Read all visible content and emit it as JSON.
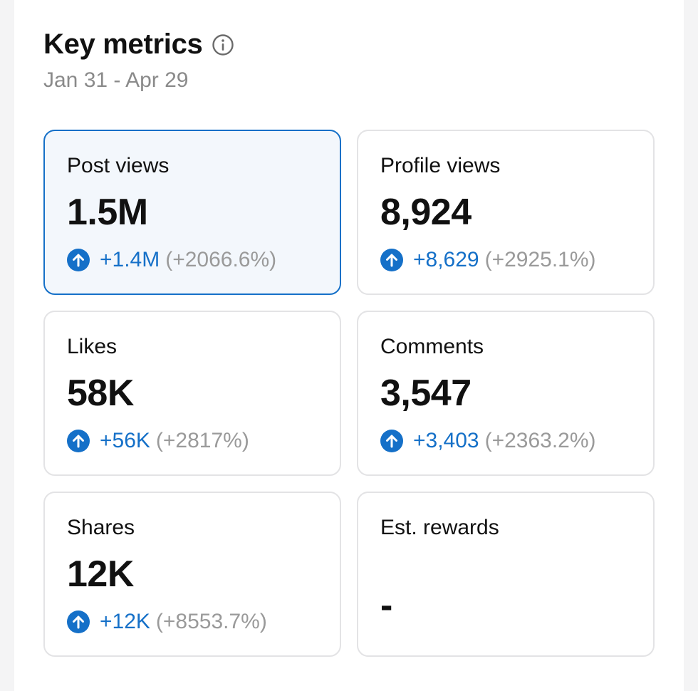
{
  "header": {
    "title": "Key metrics",
    "info_icon": "info-circle-icon",
    "date_range": "Jan 31 - Apr 29"
  },
  "colors": {
    "accent": "#1570c8",
    "muted": "#9a9a9a",
    "selected_bg": "#f3f7fc"
  },
  "metrics": [
    {
      "label": "Post views",
      "value": "1.5M",
      "delta": "+1.4M",
      "pct": "(+2066.6%)",
      "selected": true
    },
    {
      "label": "Profile views",
      "value": "8,924",
      "delta": "+8,629",
      "pct": "(+2925.1%)",
      "selected": false
    },
    {
      "label": "Likes",
      "value": "58K",
      "delta": "+56K",
      "pct": "(+2817%)",
      "selected": false
    },
    {
      "label": "Comments",
      "value": "3,547",
      "delta": "+3,403",
      "pct": "(+2363.2%)",
      "selected": false
    },
    {
      "label": "Shares",
      "value": "12K",
      "delta": "+12K",
      "pct": "(+8553.7%)",
      "selected": false
    },
    {
      "label": "Est. rewards",
      "value": "-",
      "selected": false
    }
  ]
}
